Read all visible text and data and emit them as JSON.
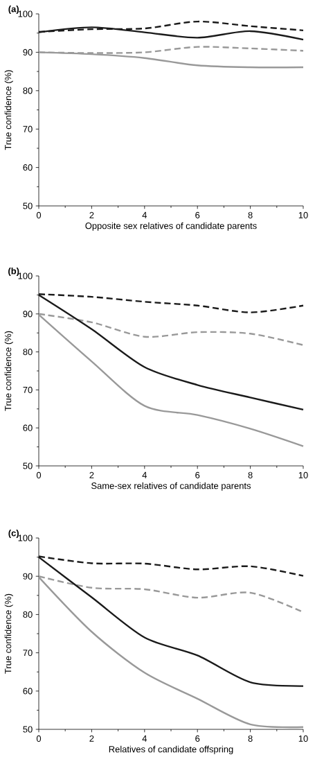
{
  "chart_data": [
    {
      "type": "line",
      "title": "(a)",
      "xlabel": "Opposite sex relatives of candidate parents",
      "ylabel": "True confidence (%)",
      "x": [
        0,
        2,
        4,
        6,
        8,
        10
      ],
      "xlim": [
        0,
        10
      ],
      "ylim": [
        50,
        100
      ],
      "xticks": [
        0,
        2,
        4,
        6,
        8,
        10
      ],
      "yticks": [
        50,
        60,
        70,
        80,
        90,
        100
      ],
      "marker": "none",
      "series": [
        {
          "color": "#999999",
          "line_style": "dashed",
          "values": [
            90,
            89.8,
            90,
            91.4,
            91,
            90.4
          ]
        },
        {
          "color": "#999999",
          "line_style": "solid",
          "values": [
            90,
            89.5,
            88.5,
            86.6,
            86.1,
            86.1
          ]
        },
        {
          "color": "#1a1a1a",
          "line_style": "dashed",
          "values": [
            95.3,
            96,
            96.2,
            98,
            96.8,
            95.7
          ]
        },
        {
          "color": "#1a1a1a",
          "line_style": "solid",
          "values": [
            95.2,
            96.5,
            95.2,
            93.8,
            95.5,
            93.3
          ]
        }
      ]
    },
    {
      "type": "line",
      "title": "(b)",
      "xlabel": "Same-sex relatives of candidate parents",
      "ylabel": "True confidence (%)",
      "x": [
        0,
        2,
        4,
        6,
        8,
        10
      ],
      "xlim": [
        0,
        10
      ],
      "ylim": [
        50,
        100
      ],
      "xticks": [
        0,
        2,
        4,
        6,
        8,
        10
      ],
      "yticks": [
        50,
        60,
        70,
        80,
        90,
        100
      ],
      "marker": "none",
      "series": [
        {
          "color": "#999999",
          "line_style": "dashed",
          "values": [
            90,
            87.8,
            84,
            85.2,
            84.8,
            81.8
          ]
        },
        {
          "color": "#999999",
          "line_style": "solid",
          "values": [
            89.8,
            77.5,
            65.8,
            63.4,
            59.8,
            55.2
          ]
        },
        {
          "color": "#1a1a1a",
          "line_style": "dashed",
          "values": [
            95.2,
            94.5,
            93.2,
            92.2,
            90.4,
            92.2
          ]
        },
        {
          "color": "#1a1a1a",
          "line_style": "solid",
          "values": [
            95,
            86,
            76,
            71.3,
            68,
            64.8
          ]
        }
      ]
    },
    {
      "type": "line",
      "title": "(c)",
      "xlabel": "Relatives of candidate offspring",
      "ylabel": "True confidence (%)",
      "x": [
        0,
        2,
        4,
        6,
        8,
        10
      ],
      "xlim": [
        0,
        10
      ],
      "ylim": [
        50,
        100
      ],
      "xticks": [
        0,
        2,
        4,
        6,
        8,
        10
      ],
      "yticks": [
        50,
        60,
        70,
        80,
        90,
        100
      ],
      "marker": "none",
      "series": [
        {
          "color": "#999999",
          "line_style": "dashed",
          "values": [
            90,
            87,
            86.6,
            84.4,
            85.7,
            80.6
          ]
        },
        {
          "color": "#999999",
          "line_style": "solid",
          "values": [
            89.8,
            75.5,
            64.8,
            58,
            51.3,
            50.6
          ]
        },
        {
          "color": "#1a1a1a",
          "line_style": "dashed",
          "values": [
            95.2,
            93.4,
            93.3,
            91.8,
            92.6,
            90.1
          ]
        },
        {
          "color": "#1a1a1a",
          "line_style": "solid",
          "values": [
            95,
            84.5,
            74,
            69.3,
            62.3,
            61.3
          ]
        }
      ]
    }
  ]
}
